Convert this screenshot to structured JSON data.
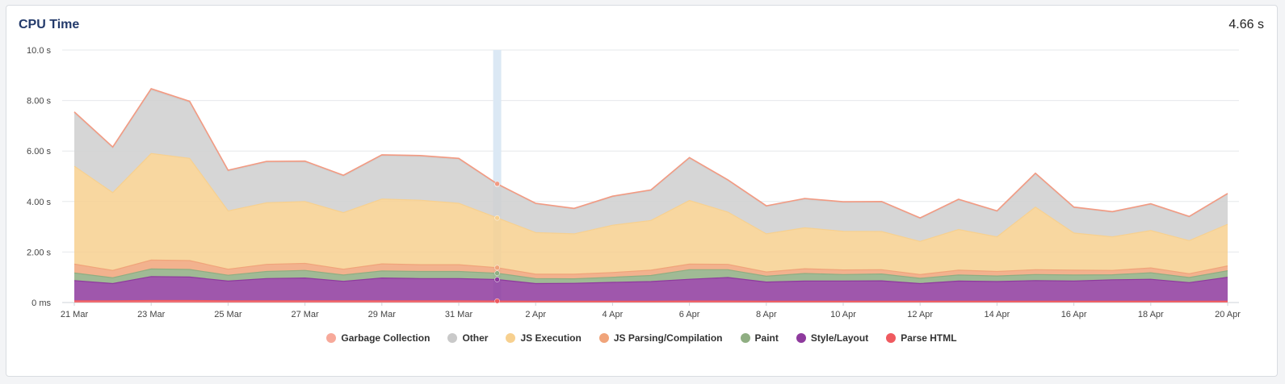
{
  "card": {
    "title": "CPU Time",
    "total": "4.66 s"
  },
  "chart_data": {
    "type": "area",
    "stacked": true,
    "x": [
      "21 Mar",
      "22 Mar",
      "23 Mar",
      "24 Mar",
      "25 Mar",
      "26 Mar",
      "27 Mar",
      "28 Mar",
      "29 Mar",
      "30 Mar",
      "31 Mar",
      "1 Apr",
      "2 Apr",
      "3 Apr",
      "4 Apr",
      "5 Apr",
      "6 Apr",
      "7 Apr",
      "8 Apr",
      "9 Apr",
      "10 Apr",
      "11 Apr",
      "12 Apr",
      "13 Apr",
      "14 Apr",
      "15 Apr",
      "16 Apr",
      "17 Apr",
      "18 Apr",
      "19 Apr",
      "20 Apr"
    ],
    "x_tick_labels": [
      "21 Mar",
      "23 Mar",
      "25 Mar",
      "27 Mar",
      "29 Mar",
      "31 Mar",
      "2 Apr",
      "4 Apr",
      "6 Apr",
      "8 Apr",
      "10 Apr",
      "12 Apr",
      "14 Apr",
      "16 Apr",
      "18 Apr",
      "20 Apr"
    ],
    "y_ticks": [
      0,
      2,
      4,
      6,
      8,
      10
    ],
    "y_tick_labels": [
      "0 ms",
      "2.00 s",
      "4.00 s",
      "6.00 s",
      "8.00 s",
      "10.0 s"
    ],
    "ylim": [
      0,
      10
    ],
    "unit": "s",
    "grid": true,
    "legend_position": "bottom",
    "hover_index": 11,
    "series": [
      {
        "name": "Parse HTML",
        "color": "#ef5a5f",
        "values": [
          0.07,
          0.07,
          0.08,
          0.08,
          0.07,
          0.07,
          0.07,
          0.07,
          0.07,
          0.07,
          0.07,
          0.06,
          0.05,
          0.05,
          0.05,
          0.05,
          0.06,
          0.06,
          0.05,
          0.05,
          0.05,
          0.05,
          0.05,
          0.05,
          0.05,
          0.05,
          0.05,
          0.05,
          0.05,
          0.05,
          0.05
        ]
      },
      {
        "name": "Style/Layout",
        "color": "#8e3a9d",
        "values": [
          0.8,
          0.68,
          0.95,
          0.93,
          0.78,
          0.88,
          0.9,
          0.77,
          0.9,
          0.88,
          0.88,
          0.85,
          0.7,
          0.71,
          0.75,
          0.78,
          0.86,
          0.93,
          0.76,
          0.8,
          0.8,
          0.81,
          0.7,
          0.8,
          0.78,
          0.82,
          0.8,
          0.85,
          0.87,
          0.74,
          0.95
        ]
      },
      {
        "name": "Paint",
        "color": "#8fae82",
        "values": [
          0.3,
          0.23,
          0.3,
          0.3,
          0.23,
          0.28,
          0.3,
          0.25,
          0.28,
          0.28,
          0.28,
          0.25,
          0.2,
          0.18,
          0.2,
          0.24,
          0.38,
          0.31,
          0.23,
          0.3,
          0.26,
          0.27,
          0.21,
          0.24,
          0.22,
          0.24,
          0.24,
          0.2,
          0.26,
          0.2,
          0.26
        ]
      },
      {
        "name": "JS Parsing/Compilation",
        "color": "#f0a47a",
        "values": [
          0.35,
          0.29,
          0.35,
          0.35,
          0.24,
          0.28,
          0.28,
          0.23,
          0.28,
          0.27,
          0.27,
          0.22,
          0.17,
          0.18,
          0.19,
          0.21,
          0.22,
          0.21,
          0.17,
          0.19,
          0.18,
          0.17,
          0.15,
          0.19,
          0.18,
          0.19,
          0.19,
          0.17,
          0.19,
          0.15,
          0.19
        ]
      },
      {
        "name": "JS Execution",
        "color": "#f7d08f",
        "values": [
          3.88,
          3.08,
          4.22,
          4.05,
          2.31,
          2.44,
          2.45,
          2.24,
          2.57,
          2.55,
          2.43,
          1.97,
          1.65,
          1.6,
          1.87,
          1.97,
          2.52,
          2.07,
          1.51,
          1.62,
          1.53,
          1.51,
          1.31,
          1.61,
          1.37,
          2.48,
          1.47,
          1.33,
          1.48,
          1.31,
          1.65
        ]
      },
      {
        "name": "Other",
        "color": "#cfcfcf",
        "values": [
          2.1,
          1.77,
          2.52,
          2.21,
          1.57,
          1.6,
          1.56,
          1.44,
          1.71,
          1.73,
          1.74,
          1.32,
          1.13,
          0.98,
          1.12,
          1.18,
          1.66,
          1.25,
          1.08,
          1.13,
          1.14,
          1.16,
          0.9,
          1.17,
          1.0,
          1.3,
          1.0,
          0.97,
          1.03,
          0.93,
          1.19
        ]
      },
      {
        "name": "Garbage Collection",
        "color": "#f29a82",
        "values": [
          0.05,
          0.04,
          0.05,
          0.05,
          0.04,
          0.04,
          0.04,
          0.04,
          0.04,
          0.04,
          0.04,
          0.03,
          0.03,
          0.03,
          0.03,
          0.03,
          0.04,
          0.03,
          0.03,
          0.03,
          0.03,
          0.03,
          0.03,
          0.03,
          0.03,
          0.04,
          0.03,
          0.03,
          0.03,
          0.03,
          0.03
        ]
      }
    ]
  },
  "legend": [
    {
      "label": "Garbage Collection",
      "color": "#f7a99a"
    },
    {
      "label": "Other",
      "color": "#c9c9c9"
    },
    {
      "label": "JS Execution",
      "color": "#f7d08f"
    },
    {
      "label": "JS Parsing/Compilation",
      "color": "#f0a47a"
    },
    {
      "label": "Paint",
      "color": "#8fae82"
    },
    {
      "label": "Style/Layout",
      "color": "#8e3a9d"
    },
    {
      "label": "Parse HTML",
      "color": "#ef5a5f"
    }
  ]
}
